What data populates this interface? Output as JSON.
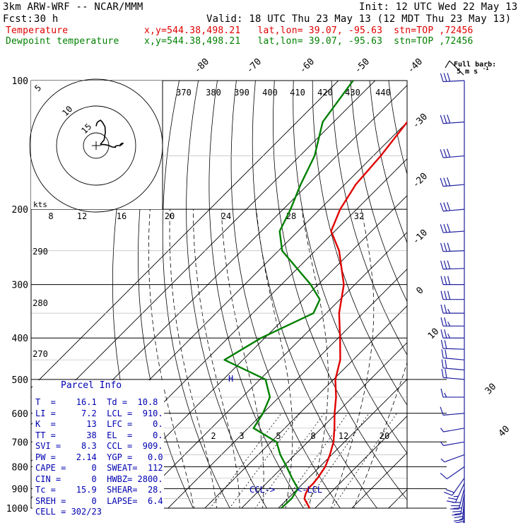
{
  "header": {
    "model": "3km ARW-WRF -- NCAR/MMM",
    "init": "Init: 12 UTC Wed 22 May 13",
    "fcst_label": "Fcst:",
    "fcst_value": "30 h",
    "valid": "Valid: 18 UTC Thu 23 May 13 (12 MDT Thu 23 May 13)",
    "series": [
      {
        "name": "Temperature",
        "info": "x,y=544.38,498.21   lat,lon= 39.07, -95.63  stn=TOP ,72456",
        "color": "#e00000"
      },
      {
        "name": "Dewpoint temperature",
        "info": "x,y=544.38,498.21   lat,lon= 39.07, -95.63  stn=TOP ,72456",
        "color": "#008000"
      }
    ]
  },
  "barb_legend": {
    "line1": "Full barb:",
    "line2": "5 m s",
    "sup": "-1"
  },
  "hodograph": {
    "units": "kts",
    "ring_labels": [
      "5",
      "10",
      "15"
    ],
    "speed_labels": [
      "8",
      "12",
      "16",
      "20",
      "24",
      "28",
      "32"
    ]
  },
  "parcel_info": {
    "title": "Parcel Info",
    "rows": [
      "T  =    16.1  Td =  10.8",
      "LI =     7.2  LCL =  910.",
      "K  =      13  LFC =    0.",
      "TT =      38  EL  =    0.",
      "SVI =    8.3  CCL =  909.",
      "PW =    2.14  YGP =   0.0",
      "CAPE =     0  SWEAT=  112",
      "CIN =      0  HWBZ= 2800.",
      "Tc =    15.9  SHEAR=  28.",
      "SREH =     0  LAPSE=  6.4",
      "CELL = 302/23"
    ]
  },
  "markers": {
    "ccl": "CCL->",
    "lcl": "<-LCL",
    "freeze": "H"
  },
  "chart_data": {
    "type": "line",
    "subtype": "skew-T log-P sounding",
    "y_axis": {
      "label": "",
      "unit": "hPa",
      "scale": "log",
      "range": [
        1000,
        100
      ],
      "ticks": [
        100,
        200,
        300,
        400,
        500,
        600,
        700,
        800,
        900,
        1000
      ]
    },
    "isotherms": [
      -90,
      -80,
      -70,
      -60,
      -50,
      -40,
      -30,
      -20,
      -10,
      0,
      10,
      20,
      30,
      40
    ],
    "isotherm_labels": [
      "-80",
      "-70",
      "-60",
      "-50",
      "-40",
      "-30",
      "-20",
      "-10",
      "0",
      "10",
      "30",
      "40"
    ],
    "dry_adiabat_labels": [
      "370",
      "380",
      "390",
      "400",
      "410",
      "420",
      "430",
      "440",
      "290",
      "280",
      "270"
    ],
    "mixing_ratio_labels": [
      "2",
      "3",
      "5",
      "8",
      "12",
      "20"
    ],
    "series": [
      {
        "name": "Temperature",
        "color": "#e00000",
        "points": [
          [
            1000,
            18.5
          ],
          [
            950,
            14.5
          ],
          [
            925,
            13.5
          ],
          [
            900,
            12.8
          ],
          [
            875,
            12.8
          ],
          [
            850,
            12.5
          ],
          [
            800,
            11.5
          ],
          [
            750,
            9.5
          ],
          [
            700,
            7.0
          ],
          [
            650,
            3.5
          ],
          [
            600,
            -0.5
          ],
          [
            550,
            -4.5
          ],
          [
            500,
            -9.5
          ],
          [
            450,
            -13.5
          ],
          [
            400,
            -19.5
          ],
          [
            350,
            -26.5
          ],
          [
            300,
            -33.0
          ],
          [
            250,
            -43.5
          ],
          [
            225,
            -51.0
          ],
          [
            200,
            -54.5
          ],
          [
            175,
            -57.0
          ],
          [
            150,
            -58.0
          ],
          [
            125,
            -60.0
          ],
          [
            100,
            -65.0
          ]
        ]
      },
      {
        "name": "Dewpoint temperature",
        "color": "#008000",
        "points": [
          [
            1000,
            10.8
          ],
          [
            950,
            11.0
          ],
          [
            900,
            10.0
          ],
          [
            850,
            5.5
          ],
          [
            800,
            1.0
          ],
          [
            750,
            -4.0
          ],
          [
            700,
            -8.5
          ],
          [
            650,
            -18.5
          ],
          [
            600,
            -20.0
          ],
          [
            550,
            -22.5
          ],
          [
            500,
            -28.5
          ],
          [
            450,
            -45.0
          ],
          [
            400,
            -41.0
          ],
          [
            350,
            -33.5
          ],
          [
            325,
            -35.5
          ],
          [
            300,
            -42.0
          ],
          [
            250,
            -59.0
          ],
          [
            225,
            -65.0
          ],
          [
            200,
            -68.0
          ],
          [
            175,
            -72.0
          ],
          [
            150,
            -76.0
          ],
          [
            125,
            -83.0
          ],
          [
            100,
            -86.0
          ]
        ]
      }
    ],
    "wind_barbs": [
      {
        "p": 1000,
        "spd": 12,
        "dir": 180
      },
      {
        "p": 975,
        "spd": 14,
        "dir": 182
      },
      {
        "p": 950,
        "spd": 15,
        "dir": 185
      },
      {
        "p": 925,
        "spd": 16,
        "dir": 190
      },
      {
        "p": 900,
        "spd": 15,
        "dir": 195
      },
      {
        "p": 875,
        "spd": 13,
        "dir": 205
      },
      {
        "p": 850,
        "spd": 10,
        "dir": 215
      },
      {
        "p": 800,
        "spd": 6,
        "dir": 235
      },
      {
        "p": 750,
        "spd": 3,
        "dir": 250
      },
      {
        "p": 700,
        "spd": 3,
        "dir": 260
      },
      {
        "p": 650,
        "spd": 4,
        "dir": 260
      },
      {
        "p": 600,
        "spd": 6,
        "dir": 265
      },
      {
        "p": 550,
        "spd": 8,
        "dir": 270
      },
      {
        "p": 500,
        "spd": 10,
        "dir": 275
      },
      {
        "p": 475,
        "spd": 11,
        "dir": 275
      },
      {
        "p": 450,
        "spd": 12,
        "dir": 275
      },
      {
        "p": 425,
        "spd": 12,
        "dir": 272
      },
      {
        "p": 400,
        "spd": 13,
        "dir": 270
      },
      {
        "p": 375,
        "spd": 14,
        "dir": 270
      },
      {
        "p": 350,
        "spd": 14,
        "dir": 270
      },
      {
        "p": 325,
        "spd": 15,
        "dir": 270
      },
      {
        "p": 300,
        "spd": 15,
        "dir": 270
      },
      {
        "p": 275,
        "spd": 15,
        "dir": 268
      },
      {
        "p": 250,
        "spd": 16,
        "dir": 268
      },
      {
        "p": 225,
        "spd": 16,
        "dir": 266
      },
      {
        "p": 200,
        "spd": 16,
        "dir": 265
      },
      {
        "p": 175,
        "spd": 17,
        "dir": 265
      },
      {
        "p": 150,
        "spd": 17,
        "dir": 265
      },
      {
        "p": 125,
        "spd": 16,
        "dir": 266
      },
      {
        "p": 100,
        "spd": 15,
        "dir": 267
      }
    ]
  }
}
